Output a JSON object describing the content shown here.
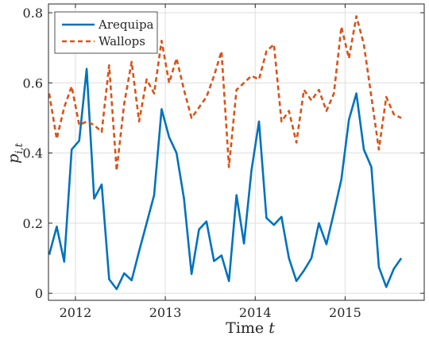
{
  "chart_data": {
    "type": "line",
    "xlabel": "Time t",
    "xlabel_main": "Time",
    "xlabel_var": "t",
    "ylabel": "p_{i,t}",
    "ylabel_main": "p",
    "ylabel_sub": "i,t",
    "xlim": [
      2011.7,
      2015.88
    ],
    "ylim": [
      -0.02,
      0.825
    ],
    "xticks": [
      2012,
      2013,
      2014,
      2015
    ],
    "xtick_labels": [
      "2012",
      "2013",
      "2014",
      "2015"
    ],
    "yticks": [
      0,
      0.2,
      0.4,
      0.6,
      0.8
    ],
    "ytick_labels": [
      "0",
      "0.2",
      "0.4",
      "0.6",
      "0.8"
    ],
    "grid": true,
    "legend_position": "top-left",
    "series": [
      {
        "name": "Arequipa",
        "color": "#0072BD",
        "style": "solid",
        "x": [
          2011.708,
          2011.792,
          2011.875,
          2011.958,
          2012.042,
          2012.125,
          2012.208,
          2012.292,
          2012.375,
          2012.458,
          2012.542,
          2012.625,
          2012.708,
          2012.792,
          2012.875,
          2012.958,
          2013.042,
          2013.125,
          2013.208,
          2013.292,
          2013.375,
          2013.458,
          2013.542,
          2013.625,
          2013.708,
          2013.792,
          2013.875,
          2013.958,
          2014.042,
          2014.125,
          2014.208,
          2014.292,
          2014.375,
          2014.458,
          2014.542,
          2014.625,
          2014.708,
          2014.792,
          2014.875,
          2014.958,
          2015.042,
          2015.125,
          2015.208,
          2015.292,
          2015.375,
          2015.458,
          2015.542,
          2015.625
        ],
        "y": [
          0.11,
          0.19,
          0.09,
          0.41,
          0.435,
          0.64,
          0.27,
          0.31,
          0.04,
          0.012,
          0.057,
          0.037,
          0.12,
          0.2,
          0.28,
          0.525,
          0.445,
          0.4,
          0.27,
          0.055,
          0.182,
          0.205,
          0.092,
          0.108,
          0.035,
          0.28,
          0.142,
          0.35,
          0.49,
          0.215,
          0.195,
          0.218,
          0.1,
          0.035,
          0.065,
          0.1,
          0.2,
          0.14,
          0.23,
          0.325,
          0.495,
          0.57,
          0.41,
          0.36,
          0.075,
          0.018,
          0.07,
          0.1
        ]
      },
      {
        "name": "Wallops",
        "color": "#D95319",
        "style": "dashed",
        "x": [
          2011.708,
          2011.792,
          2011.875,
          2011.958,
          2012.042,
          2012.125,
          2012.208,
          2012.292,
          2012.375,
          2012.458,
          2012.542,
          2012.625,
          2012.708,
          2012.792,
          2012.875,
          2012.958,
          2013.042,
          2013.125,
          2013.208,
          2013.292,
          2013.375,
          2013.458,
          2013.542,
          2013.625,
          2013.708,
          2013.792,
          2013.875,
          2013.958,
          2014.042,
          2014.125,
          2014.208,
          2014.292,
          2014.375,
          2014.458,
          2014.542,
          2014.625,
          2014.708,
          2014.792,
          2014.875,
          2014.958,
          2015.042,
          2015.125,
          2015.208,
          2015.292,
          2015.375,
          2015.458,
          2015.542,
          2015.625
        ],
        "y": [
          0.57,
          0.44,
          0.53,
          0.59,
          0.48,
          0.49,
          0.48,
          0.46,
          0.65,
          0.35,
          0.54,
          0.66,
          0.49,
          0.61,
          0.57,
          0.72,
          0.6,
          0.67,
          0.58,
          0.5,
          0.53,
          0.56,
          0.62,
          0.69,
          0.36,
          0.58,
          0.6,
          0.62,
          0.61,
          0.69,
          0.71,
          0.49,
          0.52,
          0.43,
          0.58,
          0.55,
          0.58,
          0.52,
          0.57,
          0.76,
          0.67,
          0.79,
          0.71,
          0.56,
          0.41,
          0.56,
          0.51,
          0.5
        ]
      }
    ]
  }
}
